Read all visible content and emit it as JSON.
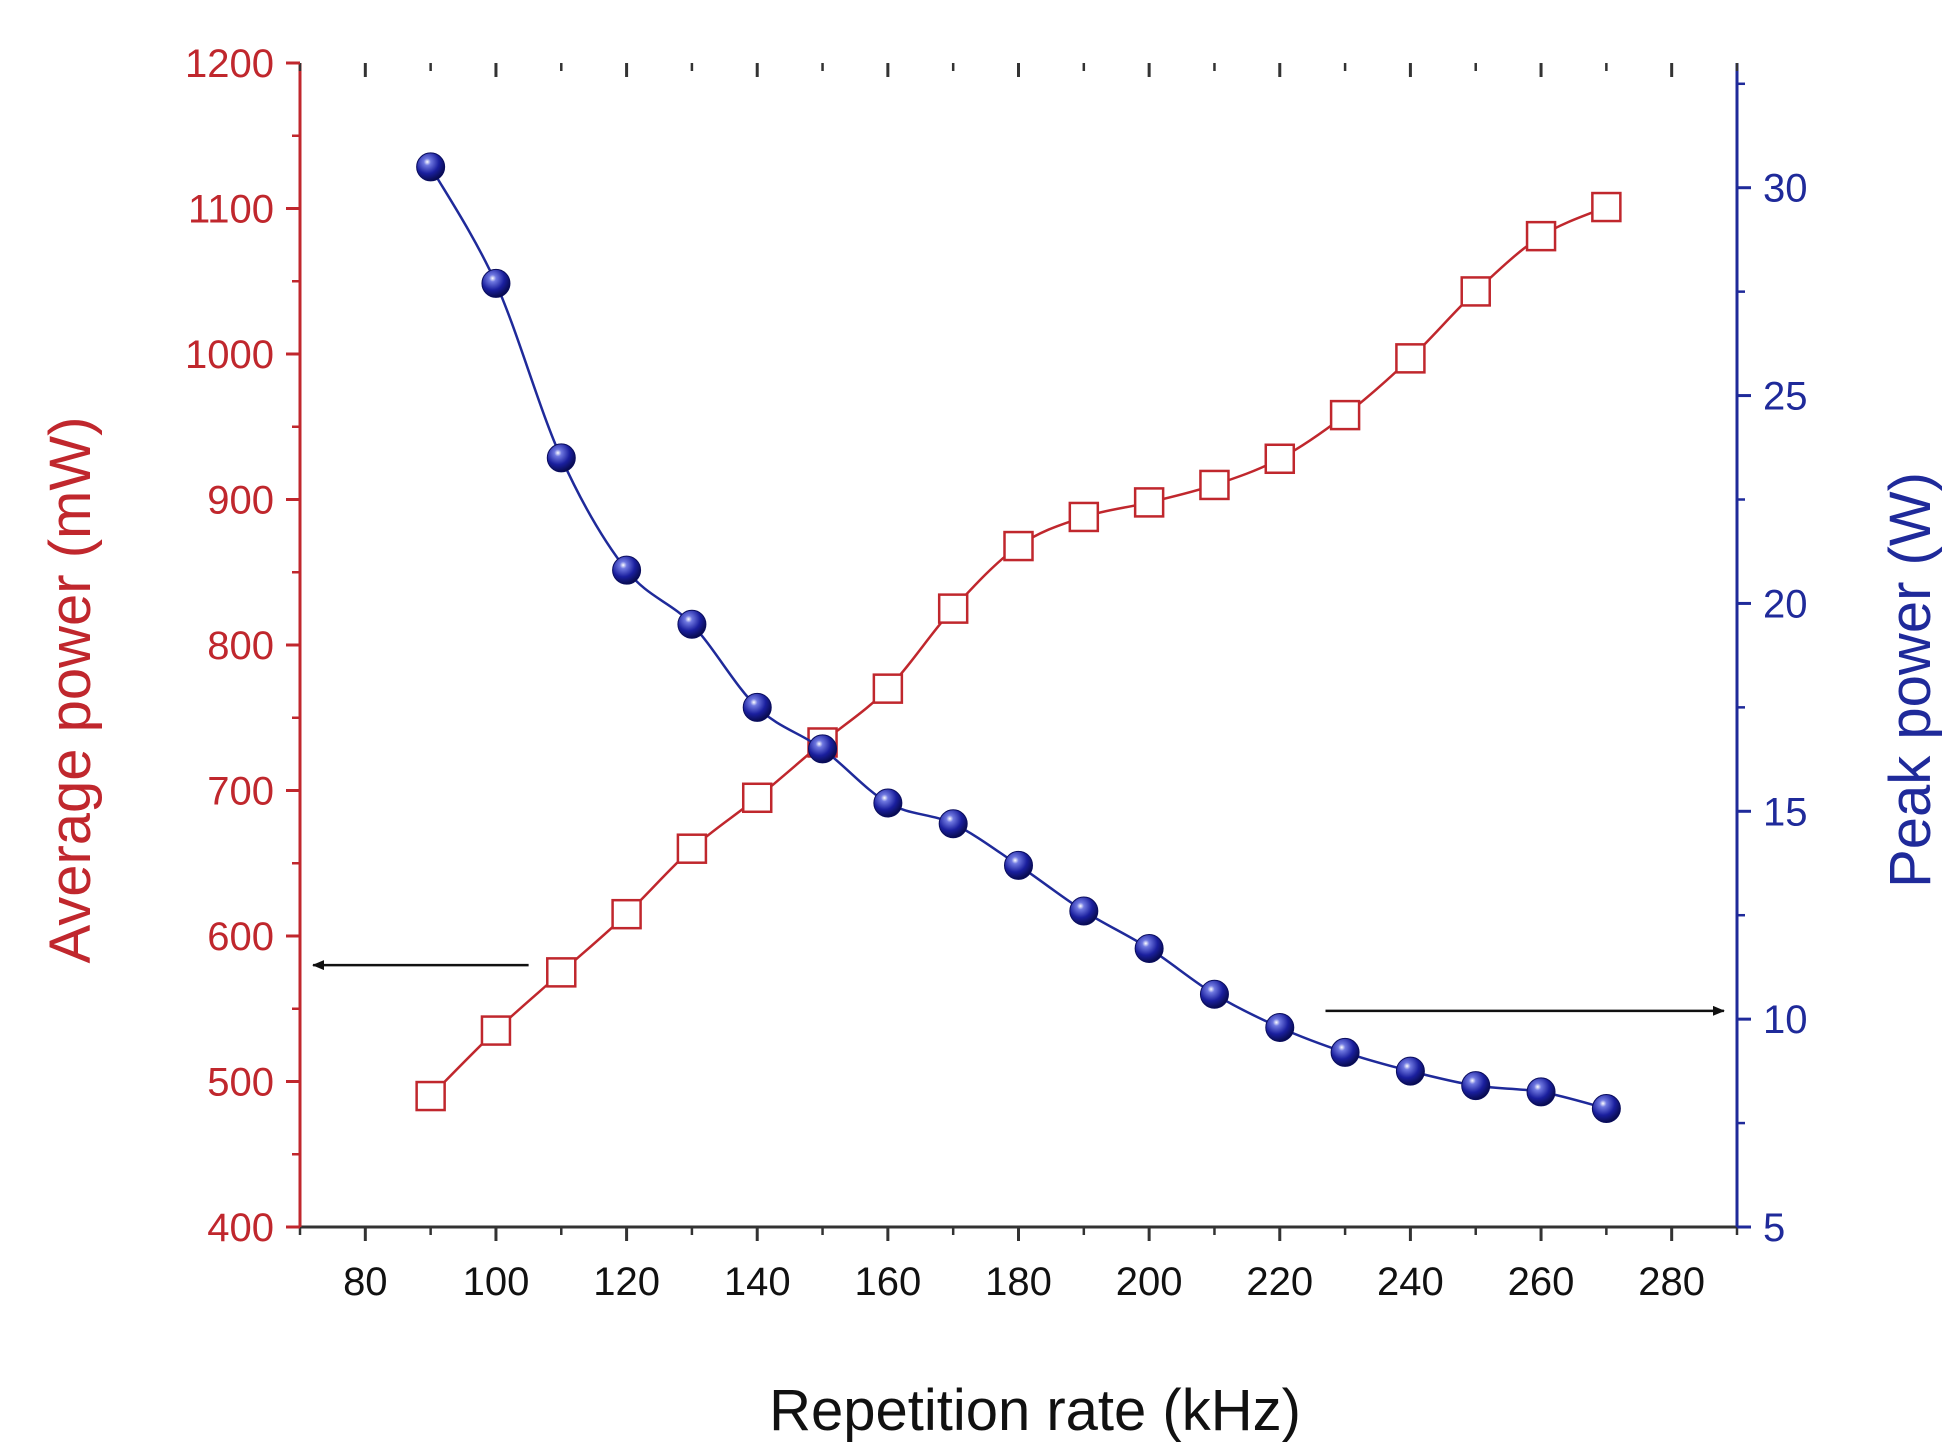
{
  "chart_data": {
    "type": "line",
    "title": "",
    "xlabel": "Repetition rate (kHz)",
    "ylabel_left": "Average power (mW)",
    "ylabel_right": "Peak power (W)",
    "xlim": [
      70,
      290
    ],
    "ylim_left": [
      400,
      1200
    ],
    "ylim_right": [
      5,
      33
    ],
    "x_ticks": [
      80,
      100,
      120,
      140,
      160,
      180,
      200,
      220,
      240,
      260,
      280
    ],
    "x_tick_labels": [
      "80",
      "100",
      "120",
      "140",
      "160",
      "180",
      "200",
      "220",
      "240",
      "260",
      "280"
    ],
    "y_left_ticks": [
      400,
      500,
      600,
      700,
      800,
      900,
      1000,
      1100,
      1200
    ],
    "y_left_tick_labels": [
      "400",
      "500",
      "600",
      "700",
      "800",
      "900",
      "1000",
      "1100",
      "1200"
    ],
    "y_right_ticks": [
      5,
      10,
      15,
      20,
      25,
      30
    ],
    "y_right_tick_labels": [
      "5",
      "10",
      "15",
      "20",
      "25",
      "30"
    ],
    "grid": false,
    "x": [
      90,
      100,
      110,
      120,
      130,
      140,
      150,
      160,
      170,
      180,
      190,
      200,
      210,
      220,
      230,
      240,
      250,
      260,
      270
    ],
    "series": [
      {
        "name": "Average power",
        "axis": "left",
        "marker": "open-square",
        "color": "#c0272d",
        "values": [
          490,
          535,
          575,
          615,
          660,
          695,
          733,
          770,
          825,
          868,
          888,
          898,
          910,
          928,
          958,
          997,
          1043,
          1081,
          1101
        ]
      },
      {
        "name": "Peak power",
        "axis": "right",
        "marker": "filled-sphere",
        "color": "#1f2a9a",
        "values": [
          30.5,
          27.7,
          23.5,
          20.8,
          19.5,
          17.5,
          16.5,
          15.2,
          14.7,
          13.7,
          12.6,
          11.7,
          10.6,
          9.8,
          9.2,
          8.75,
          8.4,
          8.25,
          7.85
        ]
      }
    ],
    "annotations": [
      {
        "type": "arrow",
        "direction": "left",
        "points_to": "left-axis",
        "from_x": 105,
        "to_x": 72,
        "y_left": 580
      },
      {
        "type": "arrow",
        "direction": "right",
        "points_to": "right-axis",
        "from_x": 227,
        "to_x": 288,
        "y_right": 10.2
      }
    ],
    "colors": {
      "left_axis": "#c0272d",
      "right_axis": "#1f2a9a",
      "bottom_axis": "#333333",
      "arrow": "#111111"
    }
  }
}
